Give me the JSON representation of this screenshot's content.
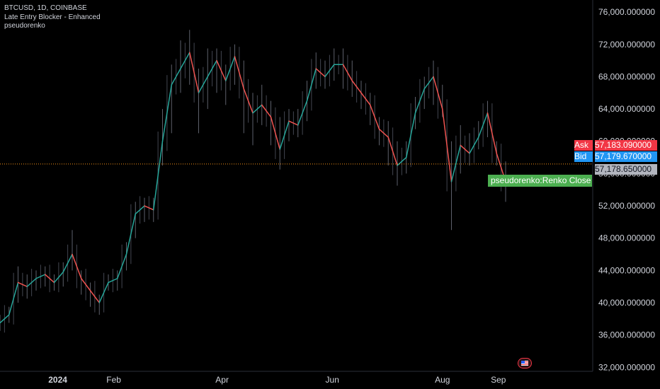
{
  "legend": {
    "symbol_line": "BTCUSD, 1D, COINBASE",
    "indicator_1": "Late Entry Blocker - Enhanced",
    "indicator_2": "pseudorenko"
  },
  "quote": {
    "ask_label": "Ask",
    "ask_value": "57,183.090000",
    "bid_label": "Bid",
    "bid_value": "57,179.670000",
    "last_value": "57,178.650000",
    "renko_label": "pseudorenko:Renko Close"
  },
  "icons": {
    "flag": "us-flag-icon"
  },
  "colors": {
    "background": "#000000",
    "ask": "#f23645",
    "bid": "#2196f3",
    "last": "#b2b5be",
    "renko_label": "#4caf50",
    "line_up": "#26a69a",
    "line_down": "#ef5350",
    "wick": "#5d606b",
    "price_line": "#f7931a"
  },
  "chart_data": {
    "type": "line",
    "title": "BTCUSD, 1D, COINBASE",
    "xlabel": "",
    "ylabel": "",
    "x_ticks": [
      "2024",
      "Feb",
      "Apr",
      "Jun",
      "Aug",
      "Sep"
    ],
    "y_ticks": [
      "32,000.000000",
      "36,000.000000",
      "40,000.000000",
      "44,000.000000",
      "48,000.000000",
      "52,000.000000",
      "56,000.000000",
      "60,000.000000",
      "64,000.000000",
      "68,000.000000",
      "72,000.000000",
      "76,000.000000"
    ],
    "ylim": [
      31500,
      77500
    ],
    "x": [
      "2023-11-30",
      "2023-12-05",
      "2023-12-10",
      "2023-12-15",
      "2023-12-20",
      "2023-12-25",
      "2023-12-30",
      "2024-01-04",
      "2024-01-09",
      "2024-01-14",
      "2024-01-19",
      "2024-01-24",
      "2024-01-29",
      "2024-02-03",
      "2024-02-08",
      "2024-02-13",
      "2024-02-18",
      "2024-02-23",
      "2024-02-28",
      "2024-03-04",
      "2024-03-09",
      "2024-03-14",
      "2024-03-19",
      "2024-03-24",
      "2024-03-29",
      "2024-04-03",
      "2024-04-08",
      "2024-04-13",
      "2024-04-18",
      "2024-04-23",
      "2024-04-28",
      "2024-05-03",
      "2024-05-08",
      "2024-05-13",
      "2024-05-18",
      "2024-05-23",
      "2024-05-28",
      "2024-06-02",
      "2024-06-07",
      "2024-06-12",
      "2024-06-17",
      "2024-06-22",
      "2024-06-27",
      "2024-07-02",
      "2024-07-07",
      "2024-07-12",
      "2024-07-17",
      "2024-07-22",
      "2024-07-27",
      "2024-08-01",
      "2024-08-06",
      "2024-08-11",
      "2024-08-16",
      "2024-08-21",
      "2024-08-26",
      "2024-08-31",
      "2024-09-05"
    ],
    "series": [
      {
        "values": [
          37500,
          38500,
          42500,
          42000,
          43000,
          43500,
          42500,
          43800,
          46000,
          43000,
          41500,
          40000,
          42500,
          43000,
          46000,
          51000,
          52000,
          51500,
          60000,
          67000,
          69000,
          71000,
          66000,
          68000,
          70000,
          67500,
          70500,
          66500,
          63500,
          64500,
          63000,
          59000,
          62500,
          62000,
          65000,
          69000,
          68000,
          69500,
          69500,
          67500,
          66000,
          64500,
          61500,
          60500,
          57000,
          58000,
          63500,
          66500,
          68000,
          64000,
          55000,
          59500,
          58500,
          60500,
          63500,
          58500,
          55000
        ],
        "wick_high": [
          38500,
          39500,
          44500,
          43500,
          44000,
          44500,
          43500,
          45000,
          49000,
          44000,
          42500,
          41000,
          43500,
          44000,
          47500,
          52500,
          53000,
          53000,
          64000,
          69500,
          72500,
          73800,
          69000,
          71500,
          71500,
          69500,
          72000,
          70000,
          66000,
          67000,
          65000,
          63000,
          64000,
          64000,
          67500,
          71000,
          70000,
          71500,
          71500,
          70000,
          67500,
          66000,
          63000,
          62500,
          60000,
          60000,
          65500,
          68000,
          70000,
          67000,
          60000,
          62000,
          61000,
          62500,
          65000,
          60000,
          57500
        ],
        "wick_low": [
          36500,
          37500,
          40000,
          40500,
          41500,
          42000,
          41500,
          42000,
          44000,
          41000,
          39500,
          38500,
          41500,
          41500,
          44000,
          48000,
          50000,
          50000,
          57000,
          61000,
          66000,
          67000,
          61000,
          64000,
          66000,
          64500,
          67000,
          61000,
          59500,
          62000,
          59500,
          56500,
          60000,
          60500,
          62500,
          66500,
          66500,
          67500,
          66500,
          65500,
          64000,
          62000,
          59500,
          57000,
          54500,
          56000,
          61500,
          64000,
          64500,
          63000,
          49000,
          56000,
          57000,
          59000,
          60500,
          57000,
          52500
        ]
      }
    ],
    "price_lines": {
      "ask": 57183.09,
      "bid": 57179.67,
      "last": 57178.65
    },
    "grid": false,
    "legend_position": "top-left"
  }
}
